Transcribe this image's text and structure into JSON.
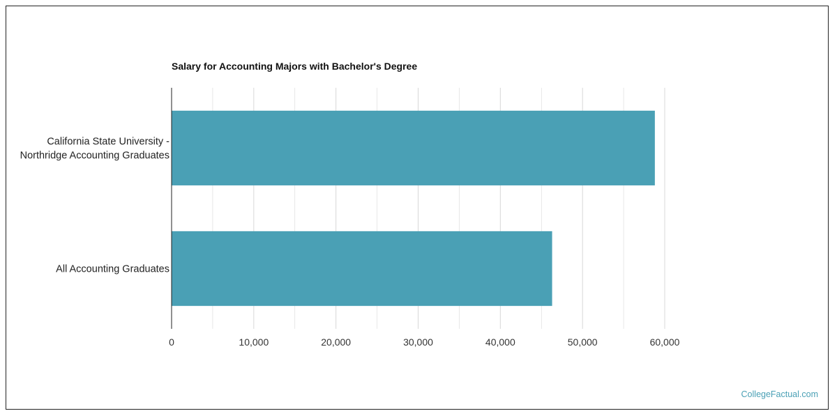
{
  "chart_data": {
    "type": "bar",
    "orientation": "horizontal",
    "title": "Salary for Accounting Majors with Bachelor's Degree",
    "categories": [
      [
        "California State University -",
        "Northridge Accounting Graduates"
      ],
      [
        "All Accounting Graduates"
      ]
    ],
    "values": [
      58800,
      46300
    ],
    "xlim": [
      0,
      60000
    ],
    "xticks": [
      0,
      10000,
      20000,
      30000,
      40000,
      50000,
      60000
    ],
    "xtick_labels": [
      "0",
      "10,000",
      "20,000",
      "30,000",
      "40,000",
      "50,000",
      "60,000"
    ],
    "grid": true,
    "bar_color": "#4aa0b5",
    "grid_color": "#d8d8d8"
  },
  "footer": {
    "credit": "CollegeFactual.com"
  }
}
